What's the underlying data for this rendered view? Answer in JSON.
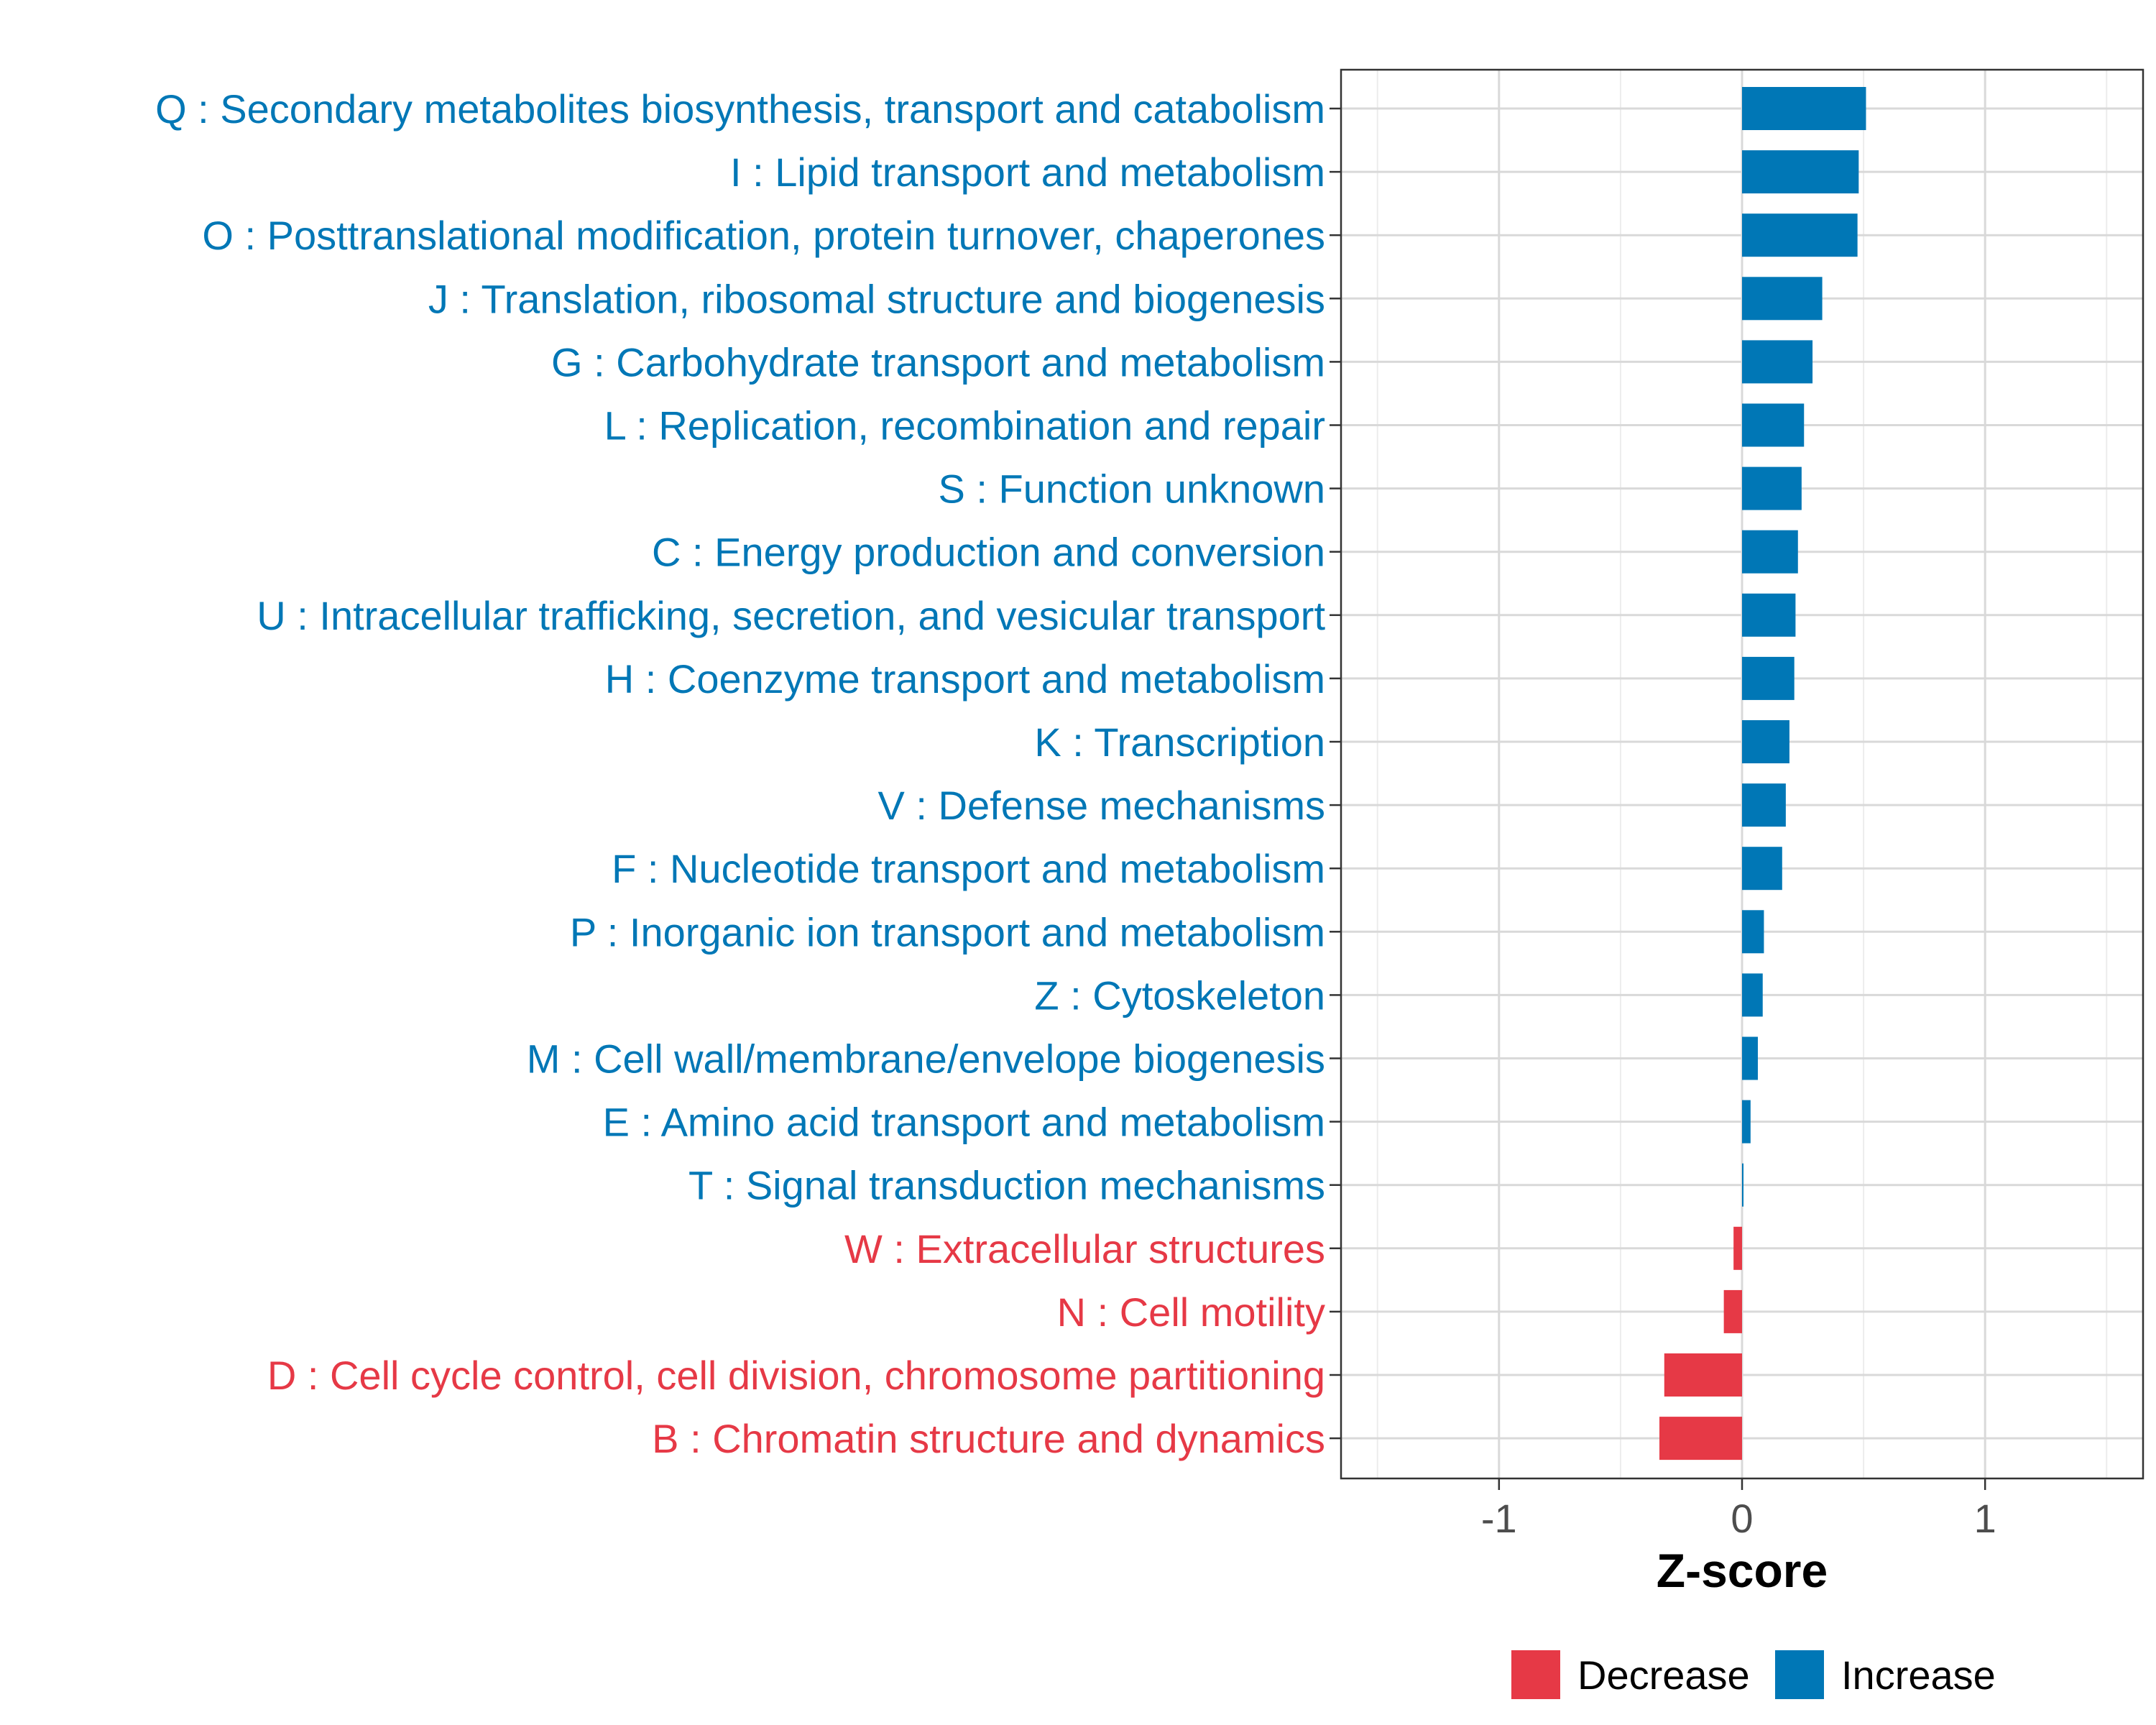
{
  "chart_data": {
    "type": "bar",
    "orientation": "horizontal",
    "title": "",
    "xlabel": "Z-score",
    "ylabel": "",
    "xlim": [
      -1.65,
      1.65
    ],
    "xticks": [
      -1,
      0,
      1
    ],
    "xtick_labels": [
      "-1",
      "0",
      "1"
    ],
    "grid": true,
    "legend_position": "bottom",
    "colors": {
      "Decrease": "#e63946",
      "Increase": "#0077b6"
    },
    "legend": [
      {
        "label": "Decrease",
        "color": "#e63946"
      },
      {
        "label": "Increase",
        "color": "#0077b6"
      }
    ],
    "categories": [
      "Q : Secondary metabolites biosynthesis, transport and catabolism",
      "I : Lipid transport and metabolism",
      "O : Posttranslational modification, protein turnover, chaperones",
      "J : Translation, ribosomal structure and biogenesis",
      "G : Carbohydrate transport and metabolism",
      "L : Replication, recombination and repair",
      "S : Function unknown",
      "C : Energy production and conversion",
      "U : Intracellular trafficking, secretion, and vesicular transport",
      "H : Coenzyme transport and metabolism",
      "K : Transcription",
      "V : Defense mechanisms",
      "F : Nucleotide transport and metabolism",
      "P : Inorganic ion transport and metabolism",
      "Z : Cytoskeleton",
      "M : Cell wall/membrane/envelope biogenesis",
      "E : Amino acid transport and metabolism",
      "T : Signal transduction mechanisms",
      "W : Extracellular structures",
      "N : Cell motility",
      "D : Cell cycle control, cell division, chromosome partitioning",
      "B : Chromatin structure and dynamics"
    ],
    "values": [
      0.51,
      0.48,
      0.475,
      0.33,
      0.29,
      0.255,
      0.245,
      0.23,
      0.22,
      0.215,
      0.195,
      0.18,
      0.165,
      0.09,
      0.085,
      0.065,
      0.035,
      0.005,
      -0.035,
      -0.075,
      -0.32,
      -0.34
    ],
    "groups": [
      "Increase",
      "Increase",
      "Increase",
      "Increase",
      "Increase",
      "Increase",
      "Increase",
      "Increase",
      "Increase",
      "Increase",
      "Increase",
      "Increase",
      "Increase",
      "Increase",
      "Increase",
      "Increase",
      "Increase",
      "Increase",
      "Decrease",
      "Decrease",
      "Decrease",
      "Decrease"
    ]
  }
}
